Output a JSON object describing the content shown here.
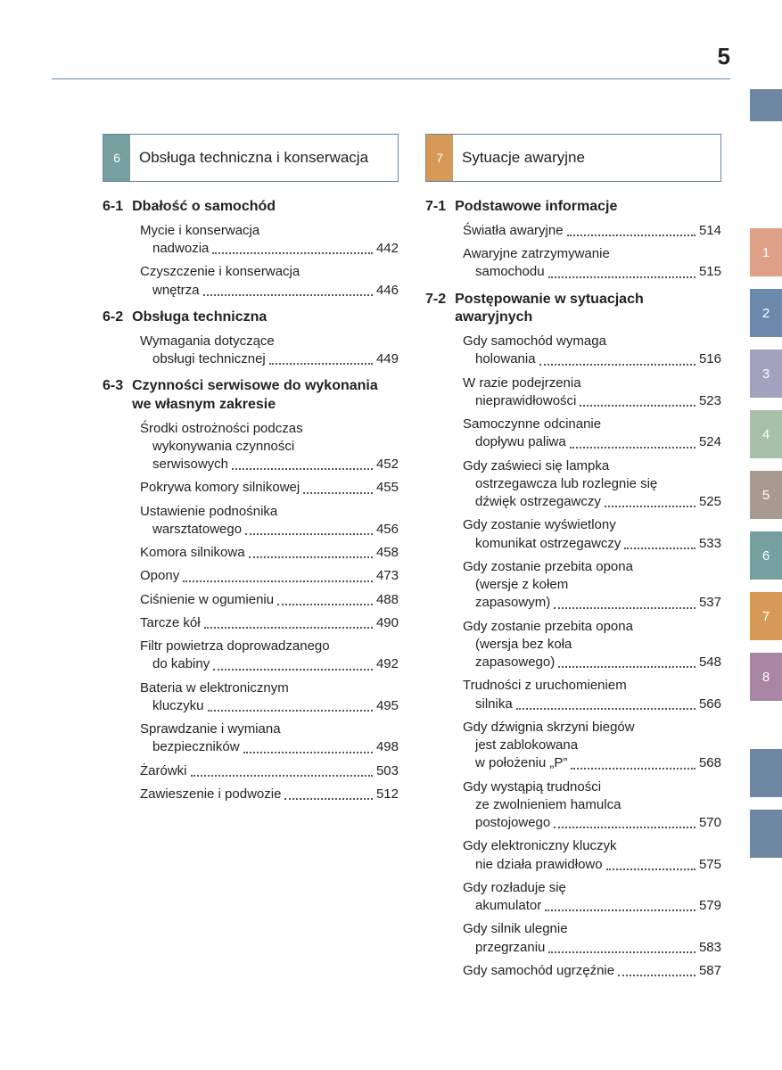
{
  "page_number": "5",
  "colors": {
    "rule": "#6b86a8",
    "top_tab": "#6e87a3"
  },
  "side_tabs": [
    {
      "label": "1",
      "bg": "#dfa088"
    },
    {
      "label": "2",
      "bg": "#6c88ab"
    },
    {
      "label": "3",
      "bg": "#a3a2be"
    },
    {
      "label": "4",
      "bg": "#a8bfa8"
    },
    {
      "label": "5",
      "bg": "#a89a8e"
    },
    {
      "label": "6",
      "bg": "#76a0a0"
    },
    {
      "label": "7",
      "bg": "#d79a56"
    },
    {
      "label": "8",
      "bg": "#a986a4"
    },
    {
      "label": "",
      "bg": "#6e87a3",
      "gap_before": 54
    },
    {
      "label": "",
      "bg": "#6e87a3"
    }
  ],
  "columns": [
    {
      "chapter_num": "6",
      "chapter_color_class": "num-teal",
      "chapter_title": "Obsługa techniczna i konserwacja",
      "sections": [
        {
          "num": "6-1",
          "title": "Dbałość o samochód",
          "entries": [
            {
              "lines": [
                "Mycie i konserwacja",
                "nadwozia"
              ],
              "page": "442"
            },
            {
              "lines": [
                "Czyszczenie i konserwacja",
                "wnętrza"
              ],
              "page": "446"
            }
          ]
        },
        {
          "num": "6-2",
          "title": "Obsługa techniczna",
          "entries": [
            {
              "lines": [
                "Wymagania dotyczące",
                "obsługi technicznej"
              ],
              "page": "449"
            }
          ]
        },
        {
          "num": "6-3",
          "title": "Czynności serwisowe do wykonania we własnym zakresie",
          "entries": [
            {
              "lines": [
                "Środki ostrożności podczas",
                "wykonywania czynności",
                "serwisowych"
              ],
              "page": "452"
            },
            {
              "lines": [
                "Pokrywa komory silnikowej"
              ],
              "page": "455"
            },
            {
              "lines": [
                "Ustawienie podnośnika",
                "warsztatowego"
              ],
              "page": "456"
            },
            {
              "lines": [
                "Komora silnikowa"
              ],
              "page": "458"
            },
            {
              "lines": [
                "Opony"
              ],
              "page": "473"
            },
            {
              "lines": [
                "Ciśnienie w ogumieniu"
              ],
              "page": "488"
            },
            {
              "lines": [
                "Tarcze kół"
              ],
              "page": "490"
            },
            {
              "lines": [
                "Filtr powietrza doprowadzanego",
                "do kabiny"
              ],
              "page": "492"
            },
            {
              "lines": [
                "Bateria w elektronicznym",
                "kluczyku"
              ],
              "page": "495"
            },
            {
              "lines": [
                "Sprawdzanie i wymiana",
                "bezpieczników"
              ],
              "page": "498"
            },
            {
              "lines": [
                "Żarówki"
              ],
              "page": "503"
            },
            {
              "lines": [
                "Zawieszenie i podwozie"
              ],
              "page": "512"
            }
          ]
        }
      ]
    },
    {
      "chapter_num": "7",
      "chapter_color_class": "num-orange",
      "chapter_title": "Sytuacje awaryjne",
      "sections": [
        {
          "num": "7-1",
          "title": "Podstawowe informacje",
          "entries": [
            {
              "lines": [
                "Światła awaryjne"
              ],
              "page": "514"
            },
            {
              "lines": [
                "Awaryjne zatrzymywanie",
                "samochodu"
              ],
              "page": "515"
            }
          ]
        },
        {
          "num": "7-2",
          "title": "Postępowanie w sytuacjach awaryjnych",
          "entries": [
            {
              "lines": [
                "Gdy samochód wymaga",
                "holowania"
              ],
              "page": "516"
            },
            {
              "lines": [
                "W razie podejrzenia",
                "nieprawidłowości"
              ],
              "page": "523"
            },
            {
              "lines": [
                "Samoczynne odcinanie",
                "dopływu paliwa"
              ],
              "page": "524"
            },
            {
              "lines": [
                "Gdy zaświeci się lampka",
                "ostrzegawcza lub rozlegnie się",
                "dźwięk ostrzegawczy"
              ],
              "page": "525"
            },
            {
              "lines": [
                "Gdy zostanie wyświetlony",
                "komunikat ostrzegawczy"
              ],
              "page": "533"
            },
            {
              "lines": [
                "Gdy zostanie przebita opona",
                "(wersje z kołem",
                "zapasowym)"
              ],
              "page": "537"
            },
            {
              "lines": [
                "Gdy zostanie przebita opona",
                "(wersja bez koła",
                "zapasowego)"
              ],
              "page": "548"
            },
            {
              "lines": [
                "Trudności z uruchomieniem",
                "silnika"
              ],
              "page": "566"
            },
            {
              "lines": [
                "Gdy dźwignia skrzyni biegów",
                "jest zablokowana",
                "w położeniu „P”"
              ],
              "page": "568"
            },
            {
              "lines": [
                "Gdy wystąpią trudności",
                "ze zwolnieniem hamulca",
                "postojowego"
              ],
              "page": "570"
            },
            {
              "lines": [
                "Gdy elektroniczny kluczyk",
                "nie działa prawidłowo"
              ],
              "page": "575"
            },
            {
              "lines": [
                "Gdy rozładuje się",
                "akumulator"
              ],
              "page": "579"
            },
            {
              "lines": [
                "Gdy silnik ulegnie",
                "przegrzaniu"
              ],
              "page": "583"
            },
            {
              "lines": [
                "Gdy samochód ugrzęźnie"
              ],
              "page": "587"
            }
          ]
        }
      ]
    }
  ]
}
